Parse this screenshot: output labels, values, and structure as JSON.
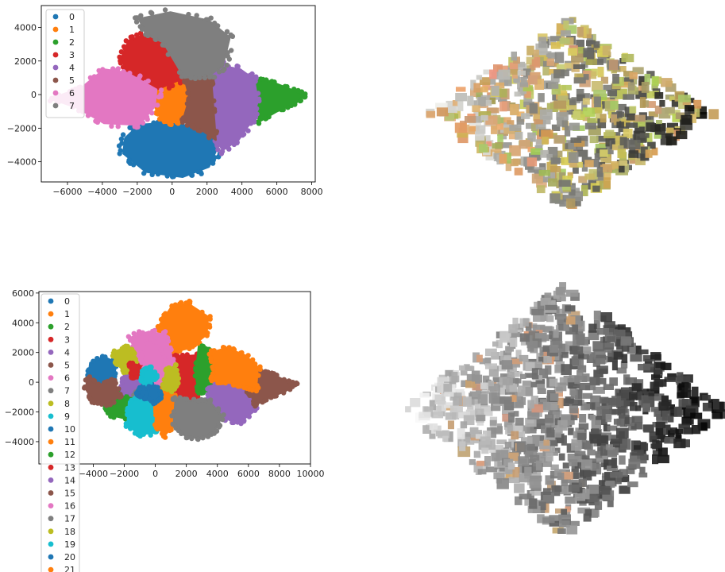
{
  "colors": {
    "tab10": [
      "#1f77b4",
      "#ff7f0e",
      "#2ca02c",
      "#d62728",
      "#9467bd",
      "#8c564b",
      "#e377c2",
      "#7f7f7f",
      "#bcbd22",
      "#17becf"
    ]
  },
  "chart_data": [
    {
      "type": "scatter",
      "title": "",
      "xlabel": "",
      "ylabel": "",
      "xlim": [
        -7500,
        8200
      ],
      "ylim": [
        -5200,
        5300
      ],
      "xticks": [
        -6000,
        -4000,
        -2000,
        0,
        2000,
        4000,
        6000,
        8000
      ],
      "xtick_labels": [
        "−6000",
        "−4000",
        "−2000",
        "0",
        "2000",
        "4000",
        "6000",
        "8000"
      ],
      "yticks": [
        -4000,
        -2000,
        0,
        2000,
        4000
      ],
      "ytick_labels": [
        "−4000",
        "−2000",
        "0",
        "2000",
        "4000"
      ],
      "grid": false,
      "legend_position": "upper-left",
      "legend_labels": [
        "0",
        "1",
        "2",
        "3",
        "4",
        "5",
        "6",
        "7"
      ],
      "clusters": [
        {
          "label": "0",
          "color": "#1f77b4",
          "polygon": [
            [
              -2700,
              -2600
            ],
            [
              -1900,
              -1800
            ],
            [
              -400,
              -1700
            ],
            [
              1400,
              -1900
            ],
            [
              2700,
              -2900
            ],
            [
              2100,
              -4300
            ],
            [
              600,
              -4900
            ],
            [
              -1500,
              -4600
            ],
            [
              -2800,
              -3500
            ]
          ]
        },
        {
          "label": "1",
          "color": "#ff7f0e",
          "polygon": [
            [
              -900,
              300
            ],
            [
              700,
              1000
            ],
            [
              1000,
              -200
            ],
            [
              600,
              -1600
            ],
            [
              -500,
              -1700
            ],
            [
              -1000,
              -700
            ]
          ]
        },
        {
          "label": "2",
          "color": "#2ca02c",
          "polygon": [
            [
              4700,
              900
            ],
            [
              5600,
              800
            ],
            [
              6800,
              300
            ],
            [
              7600,
              0
            ],
            [
              7100,
              -500
            ],
            [
              6000,
              -1000
            ],
            [
              5000,
              -1600
            ],
            [
              4600,
              -500
            ]
          ]
        },
        {
          "label": "3",
          "color": "#d62728",
          "polygon": [
            [
              -2900,
              2200
            ],
            [
              -2500,
              3200
            ],
            [
              -1500,
              3600
            ],
            [
              -500,
              3100
            ],
            [
              700,
              1000
            ],
            [
              -900,
              300
            ],
            [
              -2600,
              1300
            ]
          ]
        },
        {
          "label": "4",
          "color": "#9467bd",
          "polygon": [
            [
              2200,
              1200
            ],
            [
              2900,
              1700
            ],
            [
              3900,
              1500
            ],
            [
              4700,
              900
            ],
            [
              4900,
              -400
            ],
            [
              4600,
              -1500
            ],
            [
              3800,
              -2700
            ],
            [
              2900,
              -3300
            ],
            [
              2500,
              -2700
            ],
            [
              2300,
              0
            ]
          ]
        },
        {
          "label": "5",
          "color": "#8c564b",
          "polygon": [
            [
              700,
              1000
            ],
            [
              2200,
              1200
            ],
            [
              2300,
              0
            ],
            [
              2500,
              -2700
            ],
            [
              1400,
              -1900
            ],
            [
              600,
              -1600
            ],
            [
              1000,
              -200
            ]
          ]
        },
        {
          "label": "6",
          "color": "#e377c2",
          "polygon": [
            [
              -6300,
              0
            ],
            [
              -5200,
              400
            ],
            [
              -3900,
              1500
            ],
            [
              -2600,
              1300
            ],
            [
              -900,
              300
            ],
            [
              -1000,
              -700
            ],
            [
              -1900,
              -1800
            ],
            [
              -3900,
              -1700
            ],
            [
              -5400,
              -800
            ],
            [
              -6800,
              -300
            ]
          ]
        },
        {
          "label": "7",
          "color": "#7f7f7f",
          "polygon": [
            [
              -1500,
              3600
            ],
            [
              -1900,
              4500
            ],
            [
              -100,
              4900
            ],
            [
              2100,
              4400
            ],
            [
              3300,
              3400
            ],
            [
              2900,
              1700
            ],
            [
              2200,
              1200
            ],
            [
              700,
              1000
            ],
            [
              -500,
              3100
            ]
          ]
        }
      ]
    },
    {
      "type": "scatter",
      "title": "",
      "xlabel": "",
      "ylabel": "",
      "xlim": [
        -7500,
        10000
      ],
      "ylim": [
        -5500,
        6100
      ],
      "xticks": [
        -4000,
        -2000,
        0,
        2000,
        4000,
        6000,
        8000,
        10000
      ],
      "xtick_labels": [
        "−4000",
        "−2000",
        "0",
        "2000",
        "4000",
        "6000",
        "8000",
        "10000"
      ],
      "yticks": [
        -4000,
        -2000,
        0,
        2000,
        4000,
        6000
      ],
      "ytick_labels": [
        "−4000",
        "−2000",
        "0",
        "2000",
        "4000",
        "6000"
      ],
      "grid": false,
      "legend_position": "upper-left, extending below axes",
      "legend_labels": [
        "0",
        "1",
        "2",
        "3",
        "4",
        "5",
        "6",
        "7",
        "8",
        "9",
        "10",
        "11",
        "12",
        "13",
        "14",
        "15",
        "16",
        "17",
        "18",
        "19",
        "20",
        "21"
      ],
      "clusters": [
        {
          "label": "0",
          "color": "#1f77b4",
          "polygon": [
            [
              -4200,
              1300
            ],
            [
              -3300,
              1700
            ],
            [
              -2500,
              1300
            ],
            [
              -2700,
              200
            ],
            [
              -3600,
              -200
            ],
            [
              -4300,
              400
            ]
          ]
        },
        {
          "label": "1",
          "color": "#ff7f0e",
          "polygon": [
            [
              300,
              3900
            ],
            [
              1000,
              5000
            ],
            [
              2100,
              5300
            ],
            [
              3400,
              4400
            ],
            [
              3300,
              3200
            ],
            [
              2200,
              2300
            ],
            [
              1000,
              2000
            ],
            [
              100,
              2800
            ]
          ]
        },
        {
          "label": "2",
          "color": "#2ca02c",
          "polygon": [
            [
              -3100,
              -600
            ],
            [
              -2200,
              -700
            ],
            [
              -1400,
              -800
            ],
            [
              -1200,
              -1900
            ],
            [
              -1700,
              -2500
            ],
            [
              -2900,
              -2200
            ],
            [
              -3300,
              -1400
            ]
          ]
        },
        {
          "label": "3",
          "color": "#d62728",
          "polygon": [
            [
              1200,
              1700
            ],
            [
              2600,
              1800
            ],
            [
              3000,
              1000
            ],
            [
              2800,
              -300
            ],
            [
              2600,
              -1200
            ],
            [
              1500,
              -1100
            ],
            [
              1200,
              0
            ]
          ]
        },
        {
          "label": "4",
          "color": "#9467bd",
          "polygon": [
            [
              -2000,
              700
            ],
            [
              -1100,
              800
            ],
            [
              -800,
              -300
            ],
            [
              -1400,
              -800
            ],
            [
              -2200,
              -700
            ]
          ]
        },
        {
          "label": "5",
          "color": "#8c564b",
          "polygon": [
            [
              -4300,
              400
            ],
            [
              -3600,
              -200
            ],
            [
              -2700,
              200
            ],
            [
              -2300,
              -900
            ],
            [
              -3000,
              -1500
            ],
            [
              -4000,
              -1300
            ],
            [
              -4500,
              -400
            ]
          ]
        },
        {
          "label": "6",
          "color": "#e377c2",
          "polygon": [
            [
              -1600,
              3000
            ],
            [
              -400,
              3400
            ],
            [
              600,
              3200
            ],
            [
              1000,
              2000
            ],
            [
              1200,
              400
            ],
            [
              900,
              -400
            ],
            [
              -100,
              -600
            ],
            [
              -800,
              400
            ],
            [
              -1200,
              1600
            ]
          ]
        },
        {
          "label": "7",
          "color": "#7f7f7f",
          "polygon": [
            [
              -800,
              -300
            ],
            [
              -200,
              -500
            ],
            [
              -400,
              -1100
            ],
            [
              -1200,
              -1100
            ],
            [
              -1400,
              -800
            ]
          ]
        },
        {
          "label": "8",
          "color": "#bcbd22",
          "polygon": [
            [
              -2800,
              2000
            ],
            [
              -1700,
              2400
            ],
            [
              -1200,
              1600
            ],
            [
              -1100,
              800
            ],
            [
              -2000,
              700
            ],
            [
              -2500,
              1300
            ]
          ]
        },
        {
          "label": "9",
          "color": "#17becf",
          "polygon": [
            [
              -1700,
              -1300
            ],
            [
              -700,
              -1000
            ],
            [
              100,
              -1500
            ],
            [
              300,
              -2700
            ],
            [
              -100,
              -3400
            ],
            [
              -1000,
              -3500
            ],
            [
              -1800,
              -2900
            ]
          ]
        },
        {
          "label": "10",
          "color": "#1f77b4",
          "polygon": [
            [
              -900,
              -300
            ],
            [
              -300,
              -100
            ],
            [
              0,
              -500
            ],
            [
              -200,
              -900
            ],
            [
              -700,
              -1100
            ],
            [
              -1200,
              -800
            ]
          ]
        },
        {
          "label": "11",
          "color": "#ff7f0e",
          "polygon": [
            [
              -100,
              -600
            ],
            [
              900,
              -400
            ],
            [
              1300,
              -1100
            ],
            [
              1200,
              -2800
            ],
            [
              600,
              -3600
            ],
            [
              0,
              -2800
            ],
            [
              100,
              -1500
            ]
          ]
        },
        {
          "label": "12",
          "color": "#2ca02c",
          "polygon": [
            [
              2800,
              2400
            ],
            [
              3600,
              2000
            ],
            [
              3800,
              900
            ],
            [
              3600,
              -500
            ],
            [
              2800,
              -700
            ],
            [
              2600,
              500
            ]
          ]
        },
        {
          "label": "13",
          "color": "#d62728",
          "polygon": [
            [
              -1700,
              1300
            ],
            [
              -900,
              1100
            ],
            [
              -1000,
              400
            ],
            [
              -1500,
              300
            ]
          ]
        },
        {
          "label": "14",
          "color": "#9467bd",
          "polygon": [
            [
              3400,
              -300
            ],
            [
              4600,
              0
            ],
            [
              5800,
              -300
            ],
            [
              6600,
              -900
            ],
            [
              6300,
              -2000
            ],
            [
              5300,
              -2800
            ],
            [
              4300,
              -2300
            ],
            [
              3500,
              -1300
            ]
          ]
        },
        {
          "label": "15",
          "color": "#8c564b",
          "polygon": [
            [
              6400,
              800
            ],
            [
              7400,
              600
            ],
            [
              8200,
              200
            ],
            [
              9000,
              -100
            ],
            [
              8400,
              -600
            ],
            [
              7400,
              -1000
            ],
            [
              6500,
              -1500
            ],
            [
              6000,
              -600
            ]
          ]
        },
        {
          "label": "16",
          "color": "#e377c2",
          "polygon": [
            [
              -600,
              2900
            ],
            [
              200,
              2600
            ],
            [
              600,
              1400
            ],
            [
              300,
              500
            ],
            [
              -400,
              400
            ],
            [
              -900,
              1500
            ]
          ]
        },
        {
          "label": "17",
          "color": "#7f7f7f",
          "polygon": [
            [
              1300,
              -1100
            ],
            [
              2600,
              -1300
            ],
            [
              3500,
              -1300
            ],
            [
              4300,
              -2300
            ],
            [
              3800,
              -3300
            ],
            [
              2900,
              -3800
            ],
            [
              1900,
              -3600
            ],
            [
              1200,
              -2700
            ]
          ]
        },
        {
          "label": "18",
          "color": "#bcbd22",
          "polygon": [
            [
              700,
              800
            ],
            [
              1300,
              1100
            ],
            [
              1500,
              0
            ],
            [
              1100,
              -600
            ],
            [
              500,
              -300
            ]
          ]
        },
        {
          "label": "19",
          "color": "#17becf",
          "polygon": [
            [
              -800,
              800
            ],
            [
              -300,
              1000
            ],
            [
              100,
              400
            ],
            [
              -400,
              -200
            ],
            [
              -900,
              100
            ]
          ]
        },
        {
          "label": "20",
          "color": "#1f77b4",
          "polygon": [
            [
              -400,
              -300
            ],
            [
              200,
              -400
            ],
            [
              400,
              -1000
            ],
            [
              -100,
              -1400
            ],
            [
              -600,
              -900
            ]
          ]
        },
        {
          "label": "21",
          "color": "#ff7f0e",
          "polygon": [
            [
              3600,
              2000
            ],
            [
              4600,
              2300
            ],
            [
              5800,
              1800
            ],
            [
              6600,
              1000
            ],
            [
              6500,
              -500
            ],
            [
              5800,
              -300
            ],
            [
              4600,
              0
            ],
            [
              3700,
              100
            ],
            [
              3800,
              900
            ]
          ]
        }
      ]
    }
  ]
}
